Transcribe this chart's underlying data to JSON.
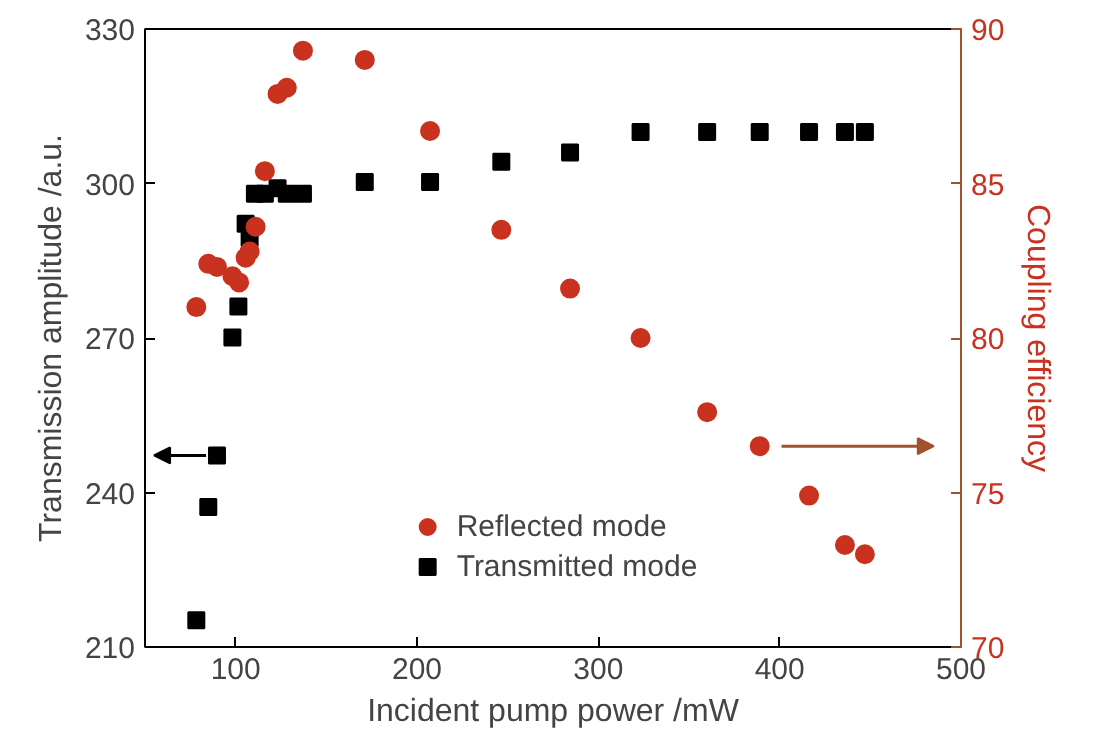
{
  "chart_data": {
    "type": "scatter",
    "xlabel": "Incident pump power /mW",
    "ylabel": "Transmission amplitude /a.u.",
    "y2label": "Coupling efficiency",
    "xlim": [
      50,
      500
    ],
    "xticks": [
      100,
      200,
      300,
      400,
      500
    ],
    "ylim": [
      210,
      330
    ],
    "yticks": [
      210,
      240,
      270,
      300,
      330
    ],
    "y2lim": [
      70,
      90
    ],
    "y2ticks": [
      70,
      75,
      80,
      85,
      90
    ],
    "legend": "bottom",
    "grid": false,
    "series": [
      {
        "name": "Reflected mode",
        "color": "#c8321e",
        "marker": "circle",
        "axis": "y2",
        "x": [
          78.3,
          84.9,
          89.7,
          98.2,
          101.9,
          105.5,
          107.7,
          111,
          116.1,
          123.1,
          128.2,
          137.1,
          171.2,
          207.2,
          246.5,
          284.4,
          323.3,
          360,
          389,
          416.2,
          436,
          447
        ],
        "values": [
          81.0,
          82.4,
          82.3,
          82.0,
          81.8,
          82.6,
          82.8,
          83.6,
          85.4,
          87.9,
          88.1,
          89.3,
          89.0,
          86.7,
          83.5,
          81.6,
          80.0,
          77.6,
          76.5,
          74.9,
          73.3,
          73.0
        ]
      },
      {
        "name": "Transmitted mode",
        "color": "#000000",
        "marker": "square",
        "x": [
          78.3,
          84.9,
          89.7,
          98.2,
          101.5,
          105.5,
          107.7,
          110.6,
          116.1,
          123.1,
          128.2,
          137.1,
          171.2,
          207.2,
          246.5,
          284.4,
          323.3,
          360,
          389,
          416.2,
          436,
          447
        ],
        "values": [
          215.2,
          237.2,
          247.2,
          270.1,
          276.1,
          292.2,
          289.4,
          298.0,
          298.0,
          299.1,
          298.0,
          298.0,
          300.3,
          300.3,
          304.2,
          306.0,
          310.0,
          310.0,
          310.0,
          310.0,
          310.0,
          310.0
        ]
      }
    ]
  }
}
